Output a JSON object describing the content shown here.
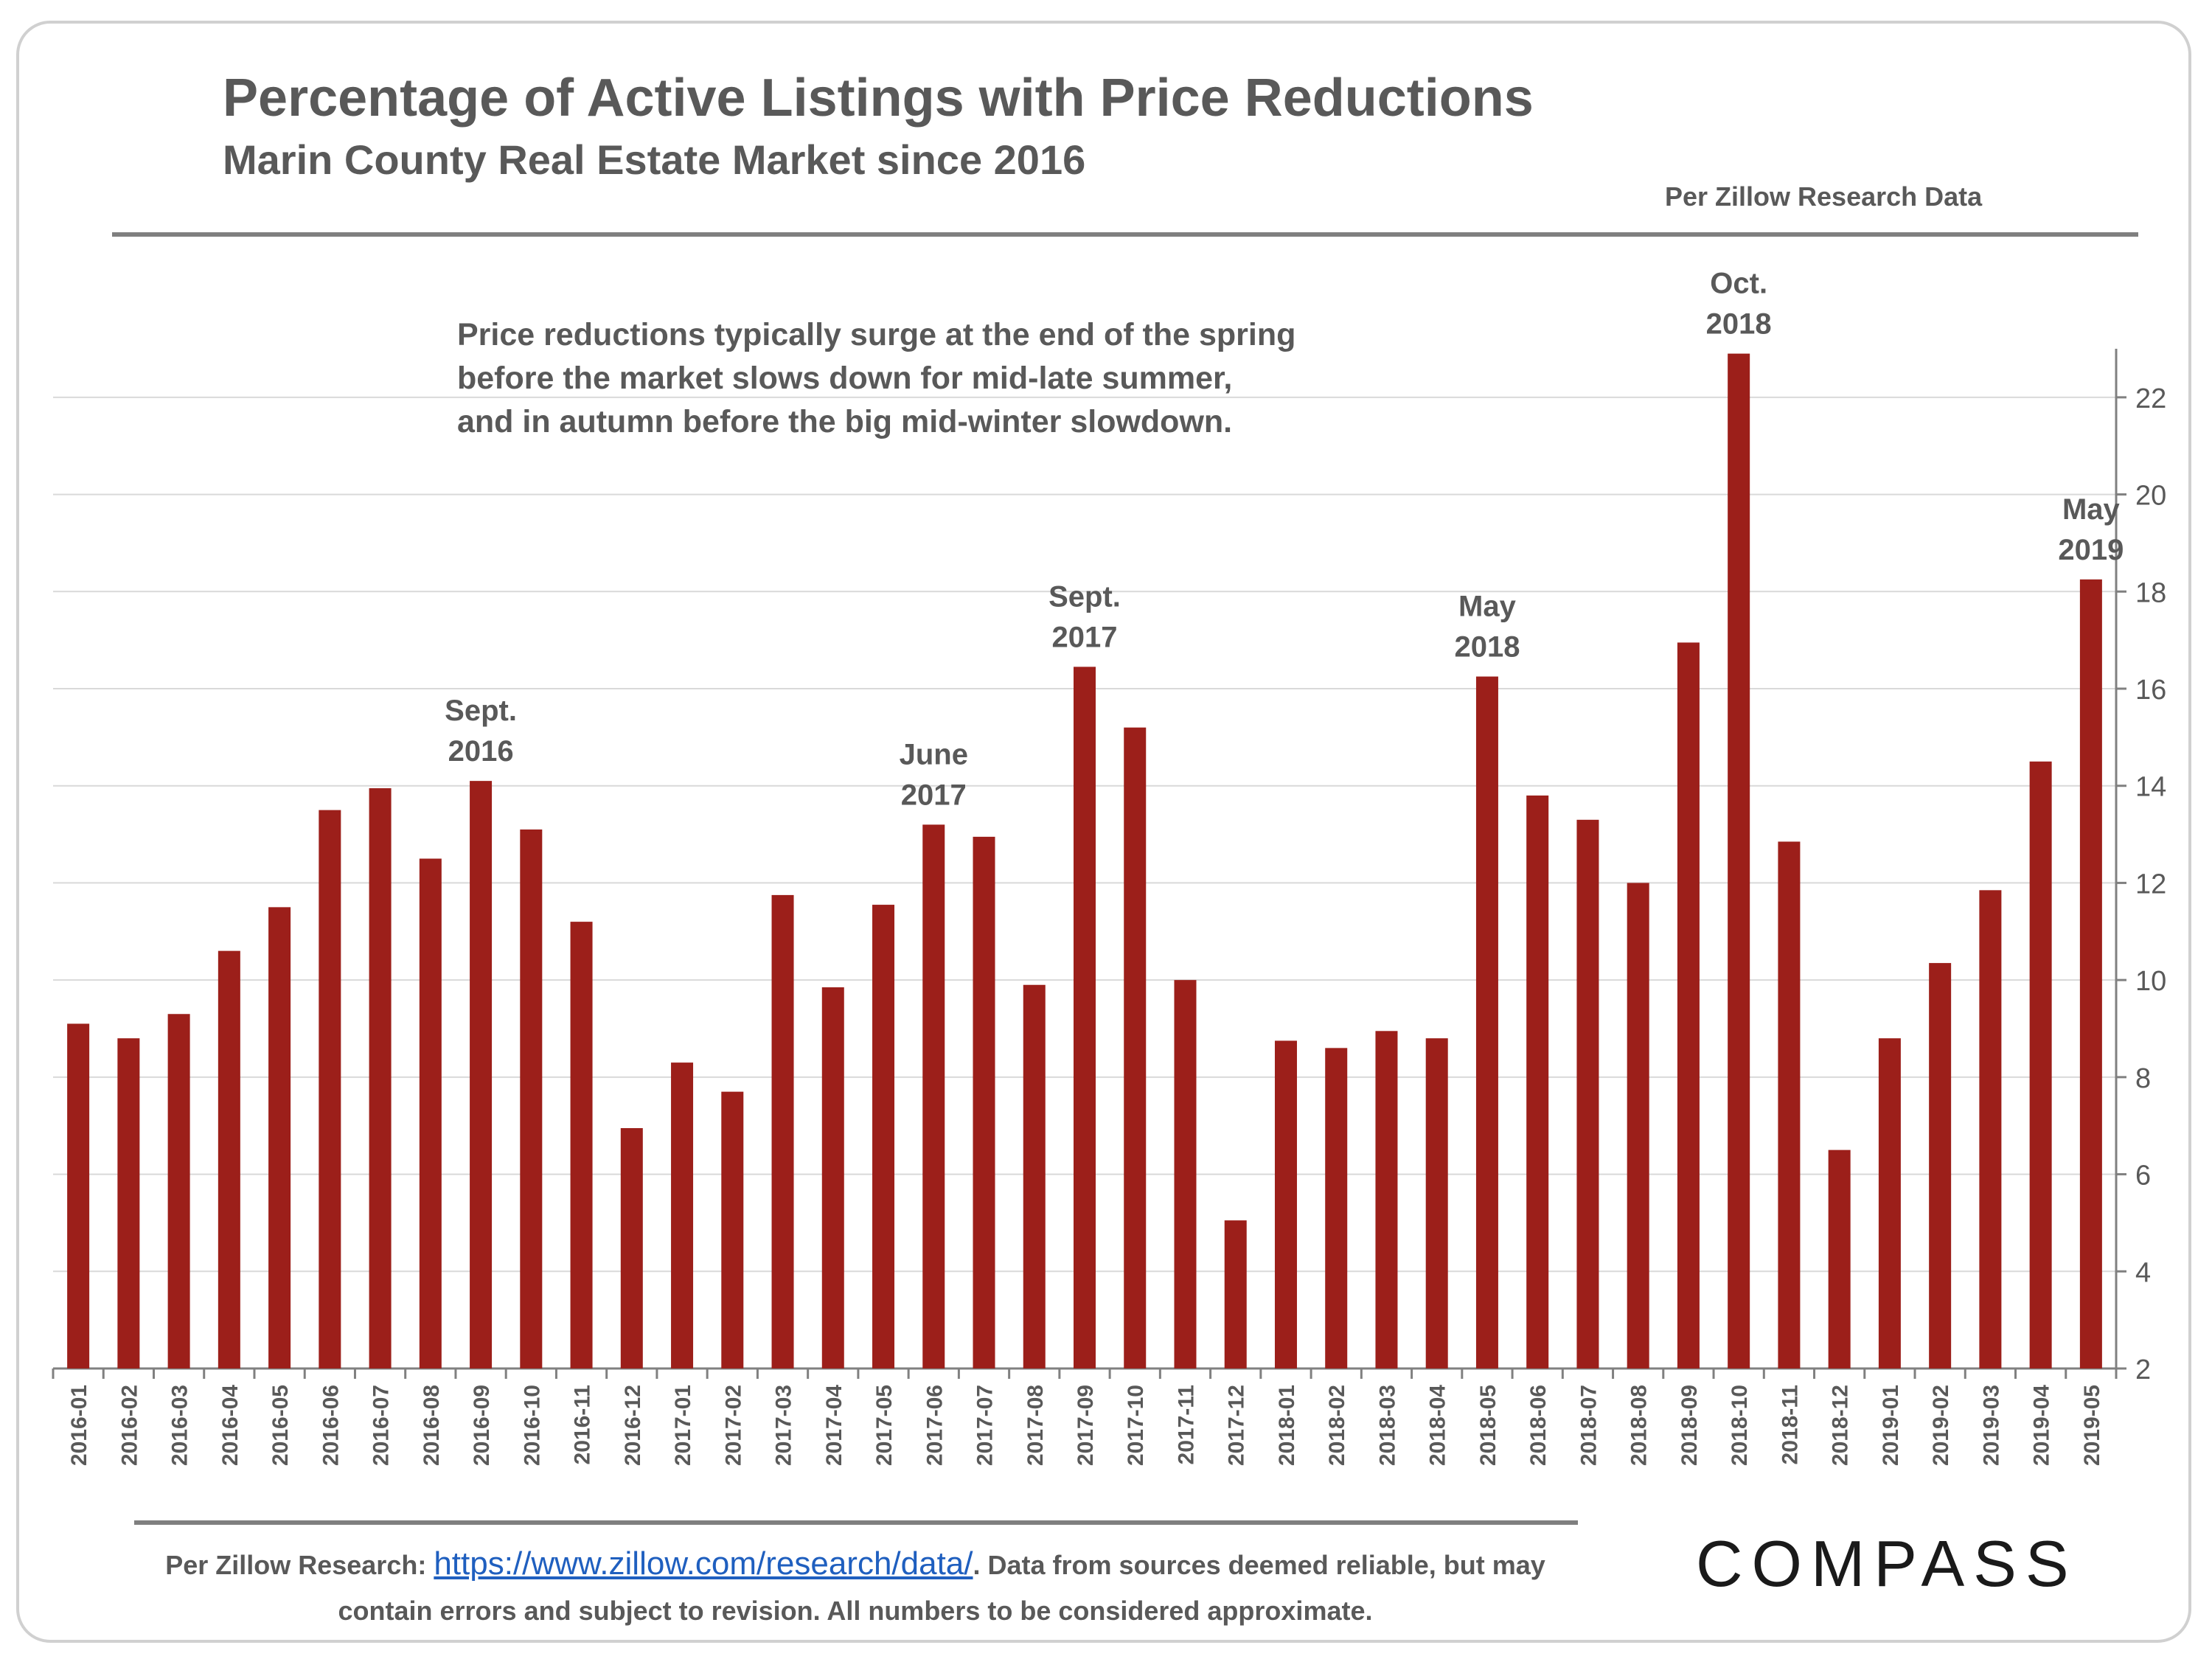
{
  "header": {
    "title": "Percentage of Active Listings with Price Reductions",
    "subtitle": "Marin County Real Estate Market since 2016",
    "source_note": "Per Zillow Research Data"
  },
  "note": {
    "line1": "Price reductions typically surge at the end of the spring",
    "line2": "before the market slows down for mid-late summer,",
    "line3": "and in autumn before the big mid-winter slowdown."
  },
  "footer": {
    "prefix": "Per Zillow Research: ",
    "link_text": "https://www.zillow.com/research/data/",
    "suffix": ". Data from sources deemed reliable, but may",
    "line2": "contain errors and subject to revision.  All numbers to be considered approximate."
  },
  "logo": {
    "text": "COMPASS"
  },
  "colors": {
    "bar": "#9c1f1a",
    "text": "#595959",
    "grid": "#d9d9d9",
    "axis": "#808080"
  },
  "chart_data": {
    "type": "bar",
    "y_axis_position": "right",
    "grid": true,
    "ylim": [
      2,
      23
    ],
    "yticks": [
      2,
      4,
      6,
      8,
      10,
      12,
      14,
      16,
      18,
      20,
      22
    ],
    "categories": [
      "2016-01",
      "2016-02",
      "2016-03",
      "2016-04",
      "2016-05",
      "2016-06",
      "2016-07",
      "2016-08",
      "2016-09",
      "2016-10",
      "2016-11",
      "2016-12",
      "2017-01",
      "2017-02",
      "2017-03",
      "2017-04",
      "2017-05",
      "2017-06",
      "2017-07",
      "2017-08",
      "2017-09",
      "2017-10",
      "2017-11",
      "2017-12",
      "2018-01",
      "2018-02",
      "2018-03",
      "2018-04",
      "2018-05",
      "2018-06",
      "2018-07",
      "2018-08",
      "2018-09",
      "2018-10",
      "2018-11",
      "2018-12",
      "2019-01",
      "2019-02",
      "2019-03",
      "2019-04",
      "2019-05"
    ],
    "values": [
      9.1,
      8.8,
      9.3,
      10.6,
      11.5,
      13.5,
      13.95,
      12.5,
      14.1,
      13.1,
      11.2,
      6.95,
      8.3,
      7.7,
      11.75,
      9.85,
      11.55,
      13.2,
      12.95,
      9.9,
      16.45,
      15.2,
      10.0,
      5.05,
      8.75,
      8.6,
      8.95,
      8.8,
      16.25,
      13.8,
      13.3,
      12.0,
      16.95,
      22.9,
      12.85,
      6.5,
      8.8,
      10.35,
      11.85,
      14.5,
      18.25
    ],
    "annotations": [
      {
        "index": 8,
        "line1": "Sept.",
        "line2": "2016"
      },
      {
        "index": 17,
        "line1": "June",
        "line2": "2017"
      },
      {
        "index": 20,
        "line1": "Sept.",
        "line2": "2017"
      },
      {
        "index": 28,
        "line1": "May",
        "line2": "2018"
      },
      {
        "index": 33,
        "line1": "Oct.",
        "line2": "2018"
      },
      {
        "index": 40,
        "line1": "May",
        "line2": "2019"
      }
    ]
  }
}
